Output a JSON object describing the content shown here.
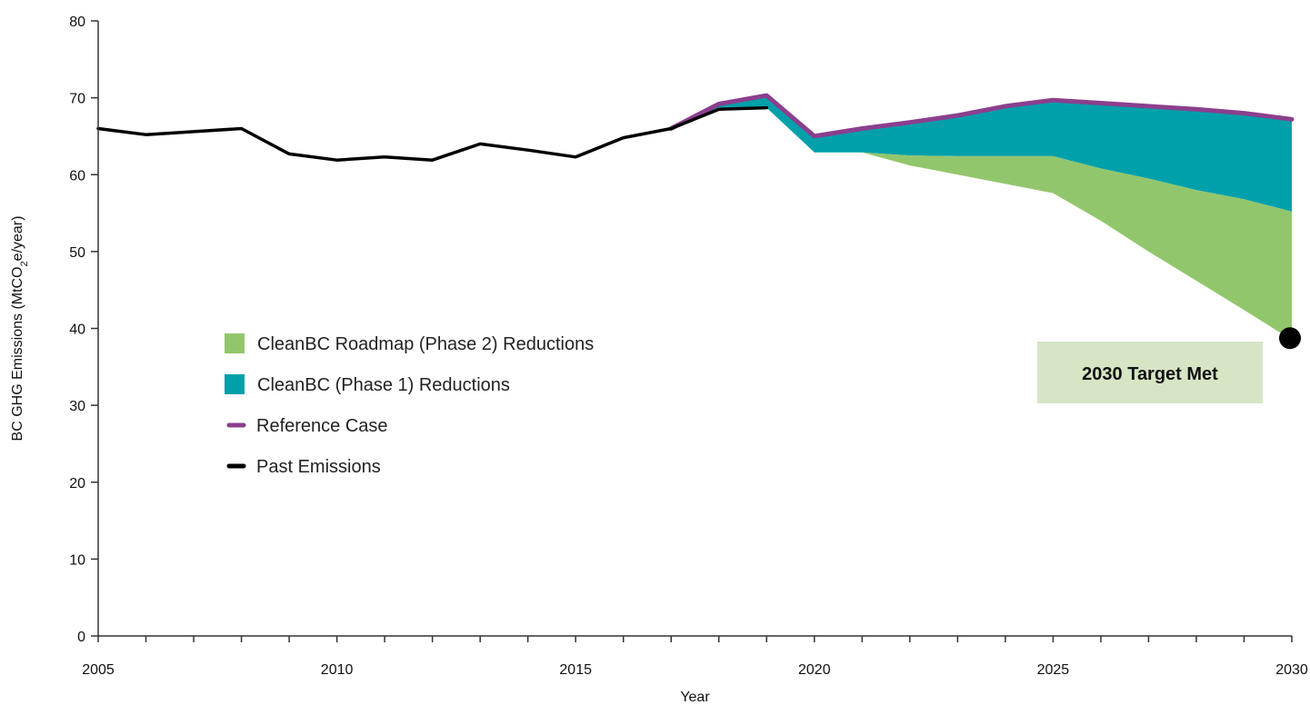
{
  "chart_data": {
    "type": "area",
    "xlabel": "Year",
    "ylabel": "BC GHG Emissions (MtCO",
    "ylabel_sub": "2",
    "ylabel_tail": "e/year)",
    "xlim": [
      2005,
      2030
    ],
    "ylim": [
      0,
      80
    ],
    "yticks": [
      0,
      10,
      20,
      30,
      40,
      50,
      60,
      70,
      80
    ],
    "xticks": [
      2005,
      2010,
      2015,
      2020,
      2025,
      2030
    ],
    "grid": false,
    "legend_position": "center-left",
    "annotation": {
      "label": "2030 Target Met",
      "x": 2030,
      "y": 38.5
    },
    "series": [
      {
        "name": "Past Emissions",
        "kind": "line",
        "color": "#000000",
        "x": [
          2005,
          2006,
          2007,
          2008,
          2009,
          2010,
          2011,
          2012,
          2013,
          2014,
          2015,
          2016,
          2017,
          2018,
          2019
        ],
        "values": [
          66.0,
          65.2,
          65.6,
          66.0,
          62.7,
          61.9,
          62.3,
          61.9,
          64.0,
          63.2,
          62.3,
          64.8,
          66.0,
          68.5,
          68.7
        ]
      },
      {
        "name": "Reference Case",
        "kind": "line",
        "color": "#8b3f8e",
        "x": [
          2017,
          2018,
          2019,
          2020,
          2021,
          2022,
          2023,
          2024,
          2025,
          2026,
          2027,
          2028,
          2029,
          2030
        ],
        "values": [
          66.0,
          69.2,
          70.3,
          65.0,
          66.0,
          66.8,
          67.7,
          68.9,
          69.7,
          69.3,
          68.9,
          68.5,
          68.0,
          67.2
        ]
      },
      {
        "name": "CleanBC (Phase 1) Reductions",
        "kind": "area",
        "color": "#00a0ab",
        "x": [
          2017,
          2018,
          2019,
          2020,
          2021,
          2022,
          2023,
          2024,
          2025,
          2026,
          2027,
          2028,
          2029,
          2030
        ],
        "upper": [
          66.0,
          69.2,
          70.3,
          65.0,
          66.0,
          66.8,
          67.7,
          68.9,
          69.7,
          69.3,
          68.9,
          68.5,
          68.0,
          67.2
        ],
        "lower": [
          66.0,
          68.5,
          68.7,
          62.9,
          62.9,
          62.5,
          62.4,
          62.4,
          62.4,
          60.8,
          59.5,
          58.0,
          56.8,
          55.2
        ]
      },
      {
        "name": "CleanBC Roadmap (Phase 2) Reductions",
        "kind": "area",
        "color": "#92c66c",
        "x": [
          2020,
          2021,
          2022,
          2023,
          2024,
          2025,
          2026,
          2027,
          2028,
          2029,
          2030
        ],
        "upper": [
          62.9,
          62.9,
          62.5,
          62.4,
          62.4,
          62.4,
          60.8,
          59.5,
          58.0,
          56.8,
          55.2
        ],
        "lower": [
          62.9,
          62.9,
          61.2,
          60.0,
          58.8,
          57.6,
          54.0,
          50.0,
          46.2,
          42.4,
          38.5
        ]
      }
    ],
    "legend": [
      {
        "name": "CleanBC Roadmap (Phase 2) Reductions",
        "color": "#92c66c",
        "marker": "square"
      },
      {
        "name": "CleanBC (Phase 1) Reductions",
        "color": "#00a0ab",
        "marker": "square"
      },
      {
        "name": "Reference Case",
        "color": "#8b3f8e",
        "marker": "line"
      },
      {
        "name": "Past Emissions",
        "color": "#000000",
        "marker": "line"
      }
    ]
  }
}
